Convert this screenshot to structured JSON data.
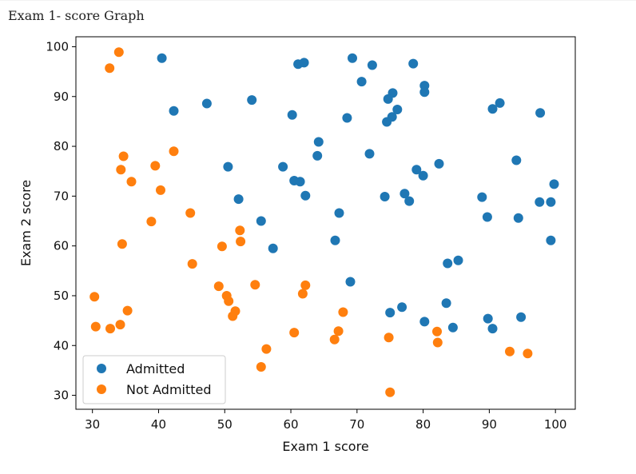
{
  "page": {
    "caption": "Exam 1- score Graph"
  },
  "chart_data": {
    "type": "scatter",
    "title": "",
    "xlabel": "Exam 1 score",
    "ylabel": "Exam 2 score",
    "xlim": [
      27.5,
      103
    ],
    "ylim": [
      27.2,
      102
    ],
    "xticks": [
      30,
      40,
      50,
      60,
      70,
      80,
      90,
      100
    ],
    "yticks": [
      30,
      40,
      50,
      60,
      70,
      80,
      90,
      100
    ],
    "grid": false,
    "legend": "bottom-left",
    "series": [
      {
        "name": "Admitted",
        "color": "#1f77b4",
        "points": [
          [
            40.5,
            97.7
          ],
          [
            61.1,
            96.5
          ],
          [
            62.0,
            96.8
          ],
          [
            69.3,
            97.7
          ],
          [
            72.3,
            96.3
          ],
          [
            78.5,
            96.6
          ],
          [
            70.7,
            93.0
          ],
          [
            80.2,
            92.2
          ],
          [
            75.4,
            90.7
          ],
          [
            80.2,
            90.9
          ],
          [
            47.3,
            88.6
          ],
          [
            54.1,
            89.3
          ],
          [
            74.7,
            89.5
          ],
          [
            91.6,
            88.7
          ],
          [
            42.3,
            87.1
          ],
          [
            90.5,
            87.5
          ],
          [
            97.7,
            86.7
          ],
          [
            76.1,
            87.4
          ],
          [
            60.2,
            86.3
          ],
          [
            68.5,
            85.7
          ],
          [
            75.3,
            85.9
          ],
          [
            74.5,
            84.9
          ],
          [
            64.2,
            80.9
          ],
          [
            71.9,
            78.5
          ],
          [
            64.0,
            78.1
          ],
          [
            94.1,
            77.2
          ],
          [
            82.4,
            76.5
          ],
          [
            50.5,
            75.9
          ],
          [
            58.8,
            75.9
          ],
          [
            79.0,
            75.3
          ],
          [
            80.0,
            74.1
          ],
          [
            60.5,
            73.1
          ],
          [
            61.4,
            72.9
          ],
          [
            99.8,
            72.4
          ],
          [
            77.2,
            70.5
          ],
          [
            62.2,
            70.1
          ],
          [
            74.2,
            69.9
          ],
          [
            88.9,
            69.8
          ],
          [
            52.1,
            69.4
          ],
          [
            77.9,
            69.0
          ],
          [
            97.6,
            68.8
          ],
          [
            99.3,
            68.8
          ],
          [
            67.3,
            66.6
          ],
          [
            89.7,
            65.8
          ],
          [
            94.4,
            65.6
          ],
          [
            55.5,
            65.0
          ],
          [
            66.7,
            61.1
          ],
          [
            99.3,
            61.1
          ],
          [
            57.3,
            59.5
          ],
          [
            85.3,
            57.1
          ],
          [
            83.7,
            56.5
          ],
          [
            69.0,
            52.8
          ],
          [
            83.5,
            48.5
          ],
          [
            76.8,
            47.7
          ],
          [
            75.0,
            46.6
          ],
          [
            94.8,
            45.7
          ],
          [
            89.8,
            45.4
          ],
          [
            80.2,
            44.8
          ],
          [
            84.5,
            43.6
          ],
          [
            90.5,
            43.4
          ]
        ]
      },
      {
        "name": "Not Admitted",
        "color": "#ff7f0e",
        "points": [
          [
            34.0,
            98.9
          ],
          [
            32.6,
            95.7
          ],
          [
            42.3,
            79.0
          ],
          [
            34.7,
            78.0
          ],
          [
            39.5,
            76.1
          ],
          [
            34.3,
            75.3
          ],
          [
            35.9,
            72.9
          ],
          [
            40.3,
            71.2
          ],
          [
            44.8,
            66.6
          ],
          [
            38.9,
            64.9
          ],
          [
            52.3,
            63.1
          ],
          [
            52.4,
            60.9
          ],
          [
            34.5,
            60.4
          ],
          [
            49.6,
            59.9
          ],
          [
            45.1,
            56.4
          ],
          [
            54.6,
            52.2
          ],
          [
            49.1,
            51.9
          ],
          [
            62.2,
            52.1
          ],
          [
            30.3,
            49.8
          ],
          [
            50.3,
            50.0
          ],
          [
            61.8,
            50.4
          ],
          [
            50.6,
            48.9
          ],
          [
            35.3,
            47.0
          ],
          [
            51.6,
            46.9
          ],
          [
            67.9,
            46.7
          ],
          [
            51.2,
            45.9
          ],
          [
            34.2,
            44.2
          ],
          [
            30.5,
            43.8
          ],
          [
            32.7,
            43.4
          ],
          [
            67.2,
            42.9
          ],
          [
            60.5,
            42.6
          ],
          [
            82.1,
            42.8
          ],
          [
            74.8,
            41.6
          ],
          [
            66.6,
            41.2
          ],
          [
            82.2,
            40.6
          ],
          [
            56.3,
            39.3
          ],
          [
            93.1,
            38.8
          ],
          [
            95.8,
            38.4
          ],
          [
            55.5,
            35.7
          ],
          [
            75.0,
            30.6
          ]
        ]
      }
    ]
  }
}
